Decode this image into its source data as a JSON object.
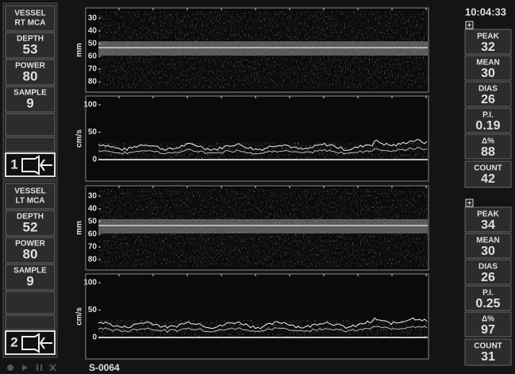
{
  "time": "10:04:33",
  "channels": [
    {
      "left": {
        "vessel": [
          "VESSEL",
          "RT MCA"
        ],
        "fields": [
          {
            "label": "DEPTH",
            "value": 53
          },
          {
            "label": "POWER",
            "value": 80
          },
          {
            "label": "SAMPLE",
            "value": 9
          }
        ],
        "probe": "1"
      },
      "plots": {
        "depth_unit": "mm",
        "depth_ticks": [
          "30",
          "40",
          "50",
          "60",
          "70",
          "80"
        ],
        "velocity_unit": "cm/s",
        "velocity_ticks": [
          "100",
          "50",
          "0"
        ]
      },
      "right": [
        {
          "label": "PEAK",
          "value": 32
        },
        {
          "label": "MEAN",
          "value": 30
        },
        {
          "label": "DIAS",
          "value": 26
        },
        {
          "label": "P.I.",
          "value": 0.19
        },
        {
          "label": "Δ%",
          "value": 88
        },
        {
          "label": "COUNT",
          "value": 42
        }
      ]
    },
    {
      "left": {
        "vessel": [
          "VESSEL",
          "LT MCA"
        ],
        "fields": [
          {
            "label": "DEPTH",
            "value": 52
          },
          {
            "label": "POWER",
            "value": 80
          },
          {
            "label": "SAMPLE",
            "value": 9
          }
        ],
        "probe": "2"
      },
      "plots": {
        "depth_unit": "mm",
        "depth_ticks": [
          "30",
          "40",
          "50",
          "60",
          "70",
          "80"
        ],
        "velocity_unit": "cm/s",
        "velocity_ticks": [
          "100",
          "50",
          "0"
        ]
      },
      "right": [
        {
          "label": "PEAK",
          "value": 34
        },
        {
          "label": "MEAN",
          "value": 30
        },
        {
          "label": "DIAS",
          "value": 26
        },
        {
          "label": "P.I.",
          "value": 0.25
        },
        {
          "label": "Δ%",
          "value": 97
        },
        {
          "label": "COUNT",
          "value": 31
        }
      ]
    }
  ],
  "footer": {
    "study_id": "S-0064"
  }
}
